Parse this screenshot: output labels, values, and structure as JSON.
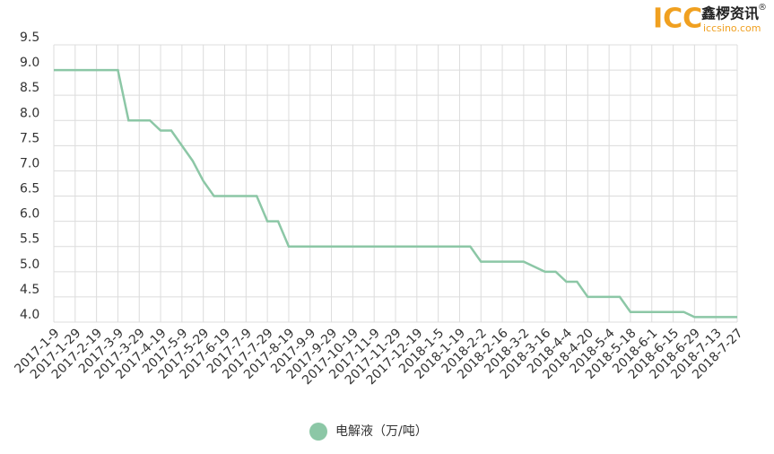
{
  "logo": {
    "brand": "ICC",
    "name": "鑫椤资讯",
    "site": "iccsino.com",
    "mark": "®"
  },
  "chart_data": {
    "type": "line",
    "categories": [
      "2017-1-9",
      null,
      "2017-1-29",
      null,
      "2017-2-19",
      null,
      "2017-3-9",
      null,
      "2017-3-29",
      null,
      "2017-4-19",
      null,
      "2017-5-9",
      null,
      "2017-5-29",
      null,
      "2017-6-19",
      null,
      "2017-7-9",
      null,
      "2017-7-29",
      null,
      "2017-8-19",
      null,
      "2017-9-9",
      null,
      "2017-9-29",
      null,
      "2017-10-19",
      null,
      "2017-11-9",
      null,
      "2017-11-29",
      null,
      "2017-12-19",
      null,
      "2018-1-5",
      null,
      "2018-1-19",
      null,
      "2018-2-2",
      null,
      "2018-2-16",
      null,
      "2018-3-2",
      null,
      "2018-3-16",
      null,
      "2018-4-4",
      null,
      "2018-4-20",
      null,
      "2018-5-4",
      null,
      "2018-5-18",
      null,
      "2018-6-1",
      null,
      "2018-6-15",
      null,
      "2018-6-29",
      null,
      "2018-7-13",
      null,
      "2018-7-27"
    ],
    "series": [
      {
        "name": "电解液（万/吨）",
        "color": "#8cc7a6",
        "values": [
          9.0,
          9.0,
          9.0,
          9.0,
          9.0,
          9.0,
          9.0,
          8.0,
          8.0,
          8.0,
          7.8,
          7.8,
          7.5,
          7.2,
          6.8,
          6.5,
          6.5,
          6.5,
          6.5,
          6.5,
          6.0,
          6.0,
          5.5,
          5.5,
          5.5,
          5.5,
          5.5,
          5.5,
          5.5,
          5.5,
          5.5,
          5.5,
          5.5,
          5.5,
          5.5,
          5.5,
          5.5,
          5.5,
          5.5,
          5.5,
          5.2,
          5.2,
          5.2,
          5.2,
          5.2,
          5.1,
          5.0,
          5.0,
          4.8,
          4.8,
          4.5,
          4.5,
          4.5,
          4.5,
          4.2,
          4.2,
          4.2,
          4.2,
          4.2,
          4.2,
          4.1,
          4.1,
          4.1,
          4.1,
          4.1
        ]
      }
    ],
    "ylim": [
      4.0,
      9.5
    ],
    "yticks": [
      {
        "value": 4,
        "label": "4.0"
      },
      4.5,
      {
        "value": 5,
        "label": "5.0"
      },
      5.5,
      {
        "value": 6,
        "label": "6.0"
      },
      6.5,
      {
        "value": 7,
        "label": "7.0"
      },
      7.5,
      {
        "value": 8,
        "label": "8.0"
      },
      8.5,
      {
        "value": 9,
        "label": "9.0"
      },
      9.5
    ],
    "grid": true,
    "legend": "bottom"
  }
}
